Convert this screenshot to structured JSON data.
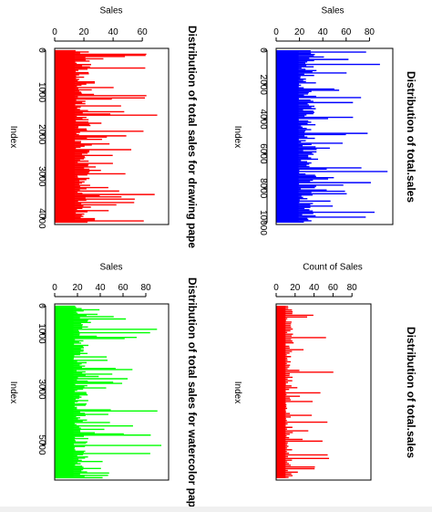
{
  "chart_data": [
    {
      "type": "bar",
      "orientation": "horizontal-lines",
      "title": "Distribution of total.sales",
      "xlabel": "Sales",
      "ylabel": "Index",
      "xticks": [
        0,
        20,
        40,
        60,
        80
      ],
      "yticks": [
        0,
        2000,
        4000,
        6000,
        8000,
        10000
      ],
      "xlim": [
        0,
        100
      ],
      "ylim": [
        0,
        10000
      ],
      "color": "#0000ff",
      "rows": 10000,
      "summary": {
        "bulk_max": 35,
        "spike_max": 97
      }
    },
    {
      "type": "bar",
      "orientation": "horizontal-lines",
      "title": "Distribution of total sales for drawing pape",
      "xlabel": "Sales",
      "ylabel": "Index",
      "xticks": [
        0,
        20,
        40,
        60
      ],
      "yticks": [
        0,
        1000,
        2000,
        3000,
        4000
      ],
      "xlim": [
        0,
        78
      ],
      "ylim": [
        0,
        4100
      ],
      "color": "#ff0000",
      "rows": 4100,
      "summary": {
        "bulk_max": 25,
        "spike_max": 72
      }
    },
    {
      "type": "bar",
      "orientation": "horizontal-lines",
      "title": "Distribution of total.sales",
      "xlabel": "Count of Sales",
      "ylabel": "Index",
      "xticks": [
        0,
        20,
        40,
        60,
        80
      ],
      "xlim": [
        0,
        100
      ],
      "ylim": [
        0,
        100
      ],
      "color": "#ff0000",
      "rows": 100,
      "summary": {
        "bulk_max": 18,
        "spike_max": 97
      }
    },
    {
      "type": "bar",
      "orientation": "horizontal-lines",
      "title": "Distribution of total sales for watercolor pap",
      "xlabel": "Sales",
      "ylabel": "Index",
      "xticks": [
        0,
        20,
        40,
        60,
        80
      ],
      "yticks": [
        0,
        1000,
        3000,
        5000
      ],
      "xlim": [
        0,
        100
      ],
      "ylim": [
        0,
        6200
      ],
      "color": "#00ff00",
      "rows": 6200,
      "summary": {
        "bulk_max": 30,
        "spike_max": 97
      }
    }
  ]
}
